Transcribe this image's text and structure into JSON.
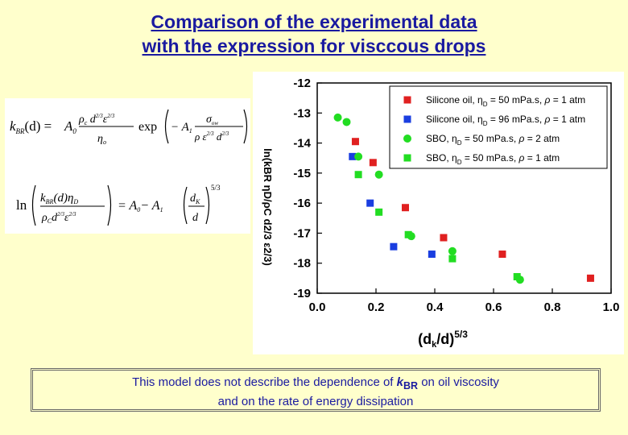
{
  "title": {
    "line1": "Comparison of the experimental data",
    "line2": "with the expression for visccous drops"
  },
  "note": {
    "prefix": "This model does not describe the dependence of ",
    "k": "k",
    "sub": "BR",
    "suffix": " on oil viscosity",
    "line2": "and on the rate of energy dissipation"
  },
  "chart_data": {
    "type": "scatter",
    "xlabel": "(dk/d)5/3",
    "ylabel": "ln(kBR ηD/ρC d2/3 ε2/3)",
    "xlim": [
      0.0,
      1.0
    ],
    "ylim": [
      -19,
      -12
    ],
    "x_ticks": [
      "0.0",
      "0.2",
      "0.4",
      "0.6",
      "0.8",
      "1.0"
    ],
    "y_ticks": [
      "-12",
      "-13",
      "-14",
      "-15",
      "-16",
      "-17",
      "-18",
      "-19"
    ],
    "legend_position": "top-right",
    "series": [
      {
        "name": "Silicone oil, ηD = 50 mPa.s, ρ = 1 atm",
        "marker": "square",
        "color": "#e02020",
        "x": [
          0.13,
          0.19,
          0.3,
          0.43,
          0.63,
          0.93
        ],
        "y": [
          -13.95,
          -14.65,
          -16.15,
          -17.15,
          -17.7,
          -18.5
        ]
      },
      {
        "name": "Silicone oil, ηD = 96 mPa.s, ρ = 1 atm",
        "marker": "square",
        "color": "#1a3ee0",
        "x": [
          0.12,
          0.18,
          0.26,
          0.39
        ],
        "y": [
          -14.45,
          -16.0,
          -17.45,
          -17.7
        ]
      },
      {
        "name": "SBO, ηD = 50 mPa.s, ρ = 2 atm",
        "marker": "circle",
        "color": "#22dd22",
        "x": [
          0.07,
          0.1,
          0.14,
          0.21,
          0.32,
          0.46,
          0.69
        ],
        "y": [
          -13.15,
          -13.3,
          -14.45,
          -15.05,
          -17.1,
          -17.6,
          -18.55
        ]
      },
      {
        "name": "SBO, ηD = 50 mPa.s, ρ = 1 atm",
        "marker": "square",
        "color": "#22dd22",
        "x": [
          0.14,
          0.21,
          0.31,
          0.46,
          0.68
        ],
        "y": [
          -15.05,
          -16.3,
          -17.05,
          -17.85,
          -18.45
        ]
      }
    ]
  },
  "legend": [
    {
      "pre": "Silicone oil, ",
      "eta": "η",
      "sub": "D",
      "post": " = 50 mPa.s, ",
      "rho": "ρ",
      "end": " = 1 atm"
    },
    {
      "pre": "Silicone oil, ",
      "eta": "η",
      "sub": "D",
      "post": " = 96 mPa.s, ",
      "rho": "ρ",
      "end": " = 1 atm"
    },
    {
      "pre": "SBO, ",
      "eta": "η",
      "sub": "D",
      "post": " = 50 mPa.s, ",
      "rho": "ρ",
      "end": " = 2 atm"
    },
    {
      "pre": "SBO, ",
      "eta": "η",
      "sub": "D",
      "post": " = 50 mPa.s, ",
      "rho": "ρ",
      "end": " = 1 atm"
    }
  ],
  "axis_x": {
    "open": "(d",
    "sub": "k",
    "close": "/d)",
    "sup": "5/3"
  },
  "axis_y": {
    "text": "ln(kBR ηD/ρC d2/3 ε2/3)"
  },
  "formula": {
    "eq1": {
      "lhs_k": "k",
      "lhs_sub": "BR",
      "lhs_arg": "(d) =",
      "A0": "A",
      "A0_sub": "0",
      "num": "ρ",
      "num_sub": "c",
      "num_d": " d",
      "num_sup1": "2/3",
      "num_eps": "ε",
      "num_sup2": "2/3",
      "den": "η",
      "den_sub": "o",
      "exp": "exp",
      "minus_A": "− A",
      "minus_A_sub": "1",
      "sigma": "σ",
      "sigma_sub": "ow",
      "den2": "ρ ε",
      "den2_sup1": "2/3",
      "den2_d": " d",
      "den2_sup2": "2/3"
    },
    "eq2": {
      "ln": "ln",
      "num_k": "k",
      "num_sub": "BR",
      "num_arg": "(d)η",
      "num_sub2": "D",
      "den_rho": "ρ",
      "den_sub": "C",
      "den_d": "d",
      "den_sup1": "2/3",
      "den_eps": "ε",
      "den_sup2": "2/3",
      "eq": "= A",
      "A0_sub": "0",
      "minus": "− A",
      "A1_sub": "1",
      "dk": "d",
      "dk_sub": "K",
      "d": "d",
      "power": "5/3"
    }
  }
}
